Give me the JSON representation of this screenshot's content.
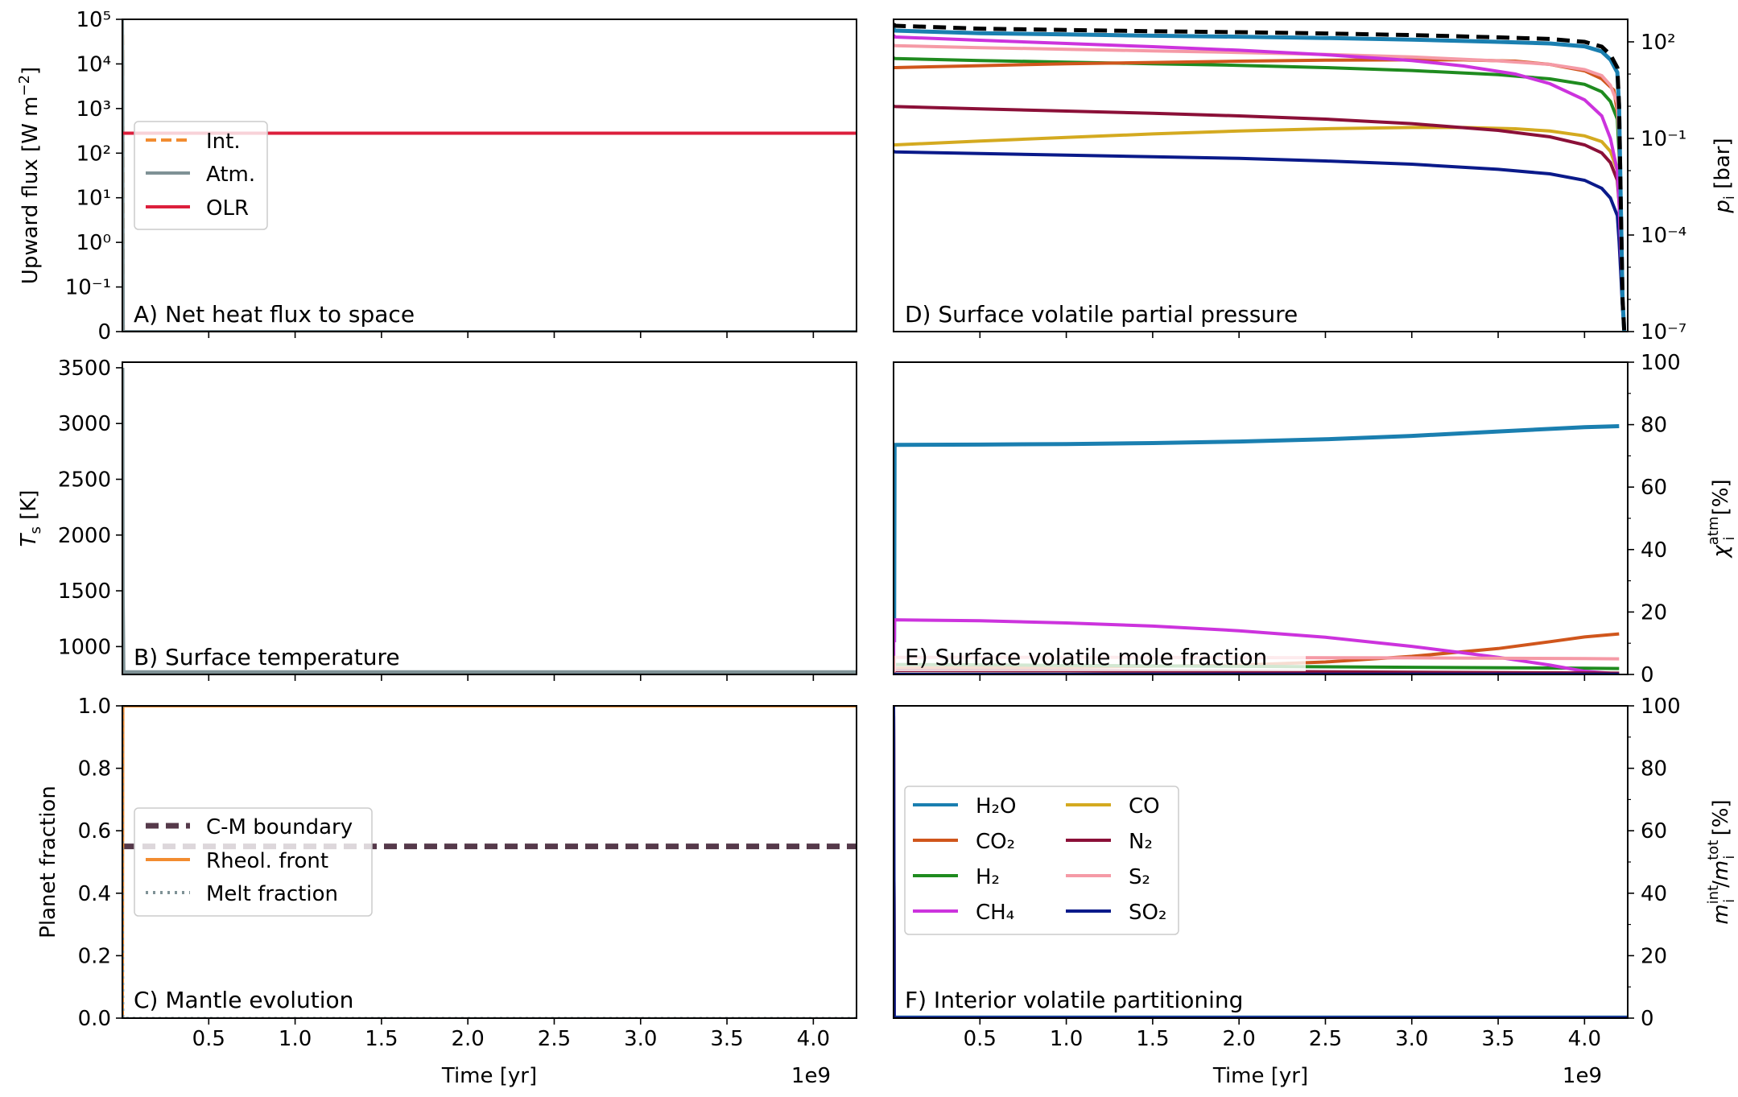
{
  "colors": {
    "H2O": "#1a7fb0",
    "CO2": "#d0561c",
    "H2": "#1f8b1f",
    "CH4": "#cc33dd",
    "CO": "#d4aa20",
    "N2": "#8b1038",
    "S2": "#f59aa6",
    "SO2": "#0a1a8a",
    "Int": "#f28c30",
    "Atm": "#7f9296",
    "OLR": "#dc1f3c",
    "CMB": "#55394a",
    "Rheol": "#f28c30",
    "Melt": "#7f9296",
    "Total": "#000000"
  },
  "shared_x": {
    "label": "Time [yr]",
    "ticks": [
      "0.5",
      "1.0",
      "1.5",
      "2.0",
      "2.5",
      "3.0",
      "3.5",
      "4.0"
    ],
    "tick_values": [
      0.5,
      1.0,
      1.5,
      2.0,
      2.5,
      3.0,
      3.5,
      4.0
    ],
    "range": [
      0,
      4.25
    ],
    "offset_label": "1e9"
  },
  "chart_data": [
    {
      "id": "A",
      "type": "line",
      "title": "A) Net heat flux to space",
      "ylabel": "Upward flux [W m$^{-2}$]",
      "yscale": "symlog",
      "ylim": [
        0,
        100000
      ],
      "yticks": [
        "0",
        "10⁻¹",
        "10⁰",
        "10¹",
        "10²",
        "10³",
        "10⁴",
        "10⁵"
      ],
      "legend": [
        "Int.",
        "Atm.",
        "OLR"
      ],
      "series": [
        {
          "name": "Int.",
          "x": [
            0,
            0.002,
            0.005,
            4.25
          ],
          "y": [
            100000,
            10000,
            0,
            0
          ]
        },
        {
          "name": "Atm.",
          "x": [
            0,
            0.002,
            0.005,
            4.25
          ],
          "y": [
            100000,
            10000,
            0,
            0
          ]
        },
        {
          "name": "OLR",
          "x": [
            0,
            4.25
          ],
          "y": [
            280,
            280
          ]
        }
      ]
    },
    {
      "id": "B",
      "type": "line",
      "title": "B) Surface temperature",
      "ylabel": "T_s [K]",
      "ylim": [
        750,
        3550
      ],
      "yticks": [
        "1000",
        "1500",
        "2000",
        "2500",
        "3000",
        "3500"
      ],
      "series": [
        {
          "name": "T_s",
          "x": [
            0,
            0.002,
            0.006,
            4.25
          ],
          "y": [
            3500,
            1500,
            770,
            770
          ]
        }
      ]
    },
    {
      "id": "C",
      "type": "line",
      "title": "C) Mantle evolution",
      "ylabel": "Planet fraction",
      "ylim": [
        0.0,
        1.0
      ],
      "yticks": [
        "0.0",
        "0.2",
        "0.4",
        "0.6",
        "0.8",
        "1.0"
      ],
      "legend": [
        "C-M boundary",
        "Rheol. front",
        "Melt fraction"
      ],
      "series": [
        {
          "name": "C-M boundary",
          "x": [
            0,
            4.25
          ],
          "y": [
            0.55,
            0.55
          ]
        },
        {
          "name": "Rheol. front",
          "x": [
            0,
            0.003,
            4.25
          ],
          "y": [
            0.0,
            1.0,
            1.0
          ]
        },
        {
          "name": "Melt fraction",
          "x": [
            0,
            0.001,
            0.004,
            4.25
          ],
          "y": [
            1.0,
            0.5,
            0.0,
            0.0
          ]
        }
      ]
    },
    {
      "id": "D",
      "type": "line",
      "title": "D) Surface volatile partial pressure",
      "ylabel": "p_i [bar]",
      "yscale": "log",
      "ylim": [
        -7,
        2.7
      ],
      "yticks": [
        "10⁻⁷",
        "10⁻⁴",
        "10⁻¹",
        "10²"
      ],
      "series": [
        {
          "name": "Total",
          "x": [
            0,
            0.01,
            0.5,
            1.0,
            1.5,
            2.0,
            2.5,
            3.0,
            3.5,
            3.8,
            4.0,
            4.1,
            4.15,
            4.19,
            4.2,
            4.21,
            4.22,
            4.23
          ],
          "y": [
            2.55,
            2.5,
            2.41,
            2.37,
            2.33,
            2.3,
            2.26,
            2.21,
            2.14,
            2.09,
            2.0,
            1.85,
            1.6,
            1.2,
            0,
            -3,
            -6,
            -7
          ]
        },
        {
          "name": "H2O",
          "x": [
            0,
            0.01,
            0.5,
            1.0,
            1.5,
            2.0,
            2.5,
            3.0,
            3.5,
            3.8,
            4.0,
            4.1,
            4.15,
            4.19,
            4.2,
            4.21,
            4.22,
            4.23
          ],
          "y": [
            2.4,
            2.35,
            2.27,
            2.23,
            2.19,
            2.16,
            2.12,
            2.07,
            2.0,
            1.95,
            1.86,
            1.7,
            1.45,
            1.05,
            0,
            -3,
            -6,
            -7
          ]
        },
        {
          "name": "CO2",
          "x": [
            0,
            0.01,
            0.5,
            1.0,
            1.5,
            2.0,
            2.5,
            3.0,
            3.3,
            3.6,
            3.8,
            4.0,
            4.1,
            4.17,
            4.2,
            4.21,
            4.22,
            4.23
          ],
          "y": [
            1.2,
            1.2,
            1.26,
            1.32,
            1.36,
            1.4,
            1.43,
            1.44,
            1.44,
            1.4,
            1.3,
            1.1,
            0.85,
            0.5,
            -0.5,
            -3,
            -6,
            -7
          ]
        },
        {
          "name": "H2",
          "x": [
            0,
            0.01,
            0.5,
            1.0,
            1.5,
            2.0,
            2.5,
            3.0,
            3.5,
            3.8,
            4.0,
            4.1,
            4.15,
            4.19,
            4.2,
            4.21,
            4.22,
            4.23
          ],
          "y": [
            1.5,
            1.48,
            1.42,
            1.37,
            1.32,
            1.27,
            1.2,
            1.11,
            0.98,
            0.85,
            0.68,
            0.45,
            0.15,
            -0.4,
            -1.5,
            -3.5,
            -6,
            -7
          ]
        },
        {
          "name": "CH4",
          "x": [
            0,
            0.01,
            0.5,
            1.0,
            1.5,
            2.0,
            2.5,
            3.0,
            3.3,
            3.6,
            3.8,
            4.0,
            4.1,
            4.15,
            4.19,
            4.2,
            4.21,
            4.22,
            4.23
          ],
          "y": [
            2.2,
            2.15,
            2.05,
            1.95,
            1.85,
            1.74,
            1.6,
            1.42,
            1.25,
            1.0,
            0.7,
            0.2,
            -0.3,
            -1.0,
            -2.0,
            -3.0,
            -4.5,
            -6,
            -7
          ]
        },
        {
          "name": "CO",
          "x": [
            0,
            0.01,
            0.5,
            1.0,
            1.5,
            2.0,
            2.5,
            3.0,
            3.3,
            3.6,
            3.8,
            4.0,
            4.1,
            4.15,
            4.19,
            4.2,
            4.21,
            4.22,
            4.23
          ],
          "y": [
            -1.2,
            -1.2,
            -1.08,
            -0.97,
            -0.86,
            -0.77,
            -0.7,
            -0.66,
            -0.66,
            -0.7,
            -0.77,
            -0.92,
            -1.1,
            -1.4,
            -2.0,
            -3.0,
            -4.5,
            -6,
            -7
          ]
        },
        {
          "name": "N2",
          "x": [
            0,
            0.01,
            0.5,
            1.0,
            1.5,
            2.0,
            2.5,
            3.0,
            3.5,
            3.8,
            4.0,
            4.1,
            4.15,
            4.19,
            4.2,
            4.21,
            4.22,
            4.23
          ],
          "y": [
            0.0,
            -0.01,
            -0.08,
            -0.15,
            -0.22,
            -0.3,
            -0.4,
            -0.54,
            -0.75,
            -0.95,
            -1.2,
            -1.45,
            -1.75,
            -2.3,
            -3.0,
            -4.2,
            -6,
            -7
          ]
        },
        {
          "name": "S2",
          "x": [
            0,
            0.01,
            0.5,
            1.0,
            1.5,
            2.0,
            2.5,
            3.0,
            3.5,
            3.8,
            4.0,
            4.1,
            4.15,
            4.19,
            4.2,
            4.21,
            4.22,
            4.23
          ],
          "y": [
            1.9,
            1.88,
            1.82,
            1.77,
            1.72,
            1.67,
            1.61,
            1.53,
            1.41,
            1.3,
            1.14,
            0.95,
            0.65,
            0.1,
            -1.0,
            -3.5,
            -6,
            -7
          ]
        },
        {
          "name": "SO2",
          "x": [
            0,
            0.01,
            0.5,
            1.0,
            1.5,
            2.0,
            2.5,
            3.0,
            3.5,
            3.8,
            4.0,
            4.1,
            4.15,
            4.19,
            4.2,
            4.21,
            4.22,
            4.23
          ],
          "y": [
            -1.4,
            -1.42,
            -1.47,
            -1.52,
            -1.57,
            -1.62,
            -1.7,
            -1.8,
            -1.96,
            -2.1,
            -2.3,
            -2.55,
            -2.85,
            -3.4,
            -4.2,
            -5.2,
            -6.3,
            -7
          ]
        }
      ]
    },
    {
      "id": "E",
      "type": "line",
      "title": "E) Surface volatile mole fraction",
      "ylabel": "χ_i^atm [%]",
      "ylim": [
        0,
        100
      ],
      "yticks": [
        "0",
        "20",
        "40",
        "60",
        "80",
        "100"
      ],
      "series": [
        {
          "name": "H2O",
          "x": [
            0,
            0.5,
            1.0,
            1.5,
            2.0,
            2.5,
            3.0,
            3.5,
            4.0,
            4.2
          ],
          "y": [
            73.5,
            73.6,
            73.8,
            74.1,
            74.6,
            75.3,
            76.4,
            77.8,
            79.2,
            79.5
          ]
        },
        {
          "name": "CO2",
          "x": [
            0,
            1.0,
            2.0,
            2.5,
            3.0,
            3.5,
            3.8,
            4.0,
            4.2
          ],
          "y": [
            2.0,
            2.3,
            3.0,
            4.0,
            5.8,
            8.3,
            10.5,
            12.0,
            13.0
          ]
        },
        {
          "name": "H2",
          "x": [
            0,
            1.0,
            2.0,
            3.0,
            4.0,
            4.2
          ],
          "y": [
            3.2,
            2.9,
            2.6,
            2.3,
            2.0,
            1.9
          ]
        },
        {
          "name": "CH4",
          "x": [
            0,
            0.5,
            1.0,
            1.5,
            2.0,
            2.5,
            3.0,
            3.5,
            3.8,
            4.0,
            4.2
          ],
          "y": [
            17.5,
            17.2,
            16.5,
            15.5,
            14.0,
            11.9,
            9.0,
            5.5,
            3.0,
            1.0,
            0.2
          ]
        },
        {
          "name": "CO",
          "x": [
            0,
            4.2
          ],
          "y": [
            0.1,
            0.1
          ]
        },
        {
          "name": "N2",
          "x": [
            0,
            1.0,
            2.0,
            3.0,
            4.0,
            4.2
          ],
          "y": [
            1.3,
            1.2,
            1.0,
            0.7,
            0.5,
            0.4
          ]
        },
        {
          "name": "S2",
          "x": [
            0,
            1.0,
            2.0,
            3.0,
            4.0,
            4.2
          ],
          "y": [
            5.5,
            5.5,
            5.4,
            5.3,
            5.1,
            5.0
          ]
        },
        {
          "name": "SO2",
          "x": [
            0,
            4.2
          ],
          "y": [
            0.04,
            0.04
          ]
        }
      ]
    },
    {
      "id": "F",
      "type": "line",
      "title": "F) Interior volatile partitioning",
      "ylabel": "m_i^int/m_i^tot [%]",
      "ylim": [
        0,
        100
      ],
      "yticks": [
        "0",
        "20",
        "40",
        "60",
        "80",
        "100"
      ],
      "legend": [
        "H₂O",
        "CO₂",
        "H₂",
        "CH₄",
        "CO",
        "N₂",
        "S₂",
        "SO₂"
      ],
      "series": [
        {
          "name": "H2O",
          "x": [
            0,
            0.002,
            0.004,
            4.25
          ],
          "y": [
            100,
            40,
            0.3,
            0.3
          ]
        },
        {
          "name": "CO2",
          "x": [
            0,
            0.004,
            4.25
          ],
          "y": [
            100,
            0.1,
            0.1
          ]
        },
        {
          "name": "H2",
          "x": [
            0,
            0.004,
            4.25
          ],
          "y": [
            100,
            0.1,
            0.1
          ]
        },
        {
          "name": "CH4",
          "x": [
            0,
            0.004,
            4.25
          ],
          "y": [
            100,
            0.1,
            0.1
          ]
        },
        {
          "name": "CO",
          "x": [
            0,
            0.004,
            4.25
          ],
          "y": [
            100,
            0.1,
            0.1
          ]
        },
        {
          "name": "N2",
          "x": [
            0,
            0.004,
            4.25
          ],
          "y": [
            100,
            0.1,
            0.1
          ]
        },
        {
          "name": "S2",
          "x": [
            0,
            0.004,
            4.25
          ],
          "y": [
            100,
            0.1,
            0.1
          ]
        },
        {
          "name": "SO2",
          "x": [
            0,
            0.004,
            4.25
          ],
          "y": [
            100,
            0.1,
            0.1
          ]
        }
      ]
    }
  ]
}
